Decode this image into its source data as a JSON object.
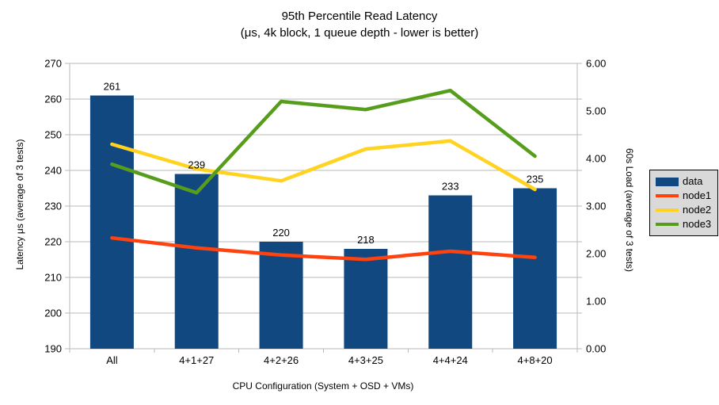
{
  "title": "95th Percentile Read Latency",
  "subtitle": "(μs, 4k block, 1 queue depth - lower is better)",
  "chart_data": {
    "type": "bar",
    "categories": [
      "All",
      "4+1+27",
      "4+2+26",
      "4+3+25",
      "4+4+24",
      "4+8+20"
    ],
    "series": [
      {
        "name": "data",
        "type": "bar",
        "axis": "left",
        "color": "#114880",
        "values": [
          261,
          239,
          220,
          218,
          233,
          235
        ],
        "labels": [
          "261",
          "239",
          "220",
          "218",
          "233",
          "235"
        ]
      },
      {
        "name": "node1",
        "type": "line",
        "axis": "right",
        "color": "#ff420e",
        "values": [
          2.33,
          2.12,
          1.97,
          1.88,
          2.05,
          1.92
        ]
      },
      {
        "name": "node2",
        "type": "line",
        "axis": "right",
        "color": "#ffd320",
        "values": [
          4.3,
          3.78,
          3.53,
          4.2,
          4.37,
          3.35
        ]
      },
      {
        "name": "node3",
        "type": "line",
        "axis": "right",
        "color": "#579d1c",
        "values": [
          3.88,
          3.28,
          5.2,
          5.03,
          5.43,
          4.05
        ]
      }
    ],
    "left_axis": {
      "label": "Latency μs (average of 3 tests)",
      "min": 190,
      "max": 270,
      "step": 10,
      "tick_labels": [
        "190",
        "200",
        "210",
        "220",
        "230",
        "240",
        "250",
        "260",
        "270"
      ]
    },
    "right_axis": {
      "label": "60s Load (average of 3 tests)",
      "min": 0,
      "max": 6,
      "step": 1,
      "tick_labels": [
        "0.00",
        "1.00",
        "2.00",
        "3.00",
        "4.00",
        "5.00",
        "6.00"
      ]
    },
    "x_axis": {
      "label": "CPU Configuration (System + OSD + VMs)"
    },
    "legend": {
      "position": "right",
      "items": [
        "data",
        "node1",
        "node2",
        "node3"
      ]
    },
    "grid": true
  },
  "style": {
    "background": "#ffffff",
    "grid_color": "#b8b8b8",
    "text_color": "#000000",
    "legend_bg": "#d9d9d9",
    "legend_border": "#000000"
  }
}
